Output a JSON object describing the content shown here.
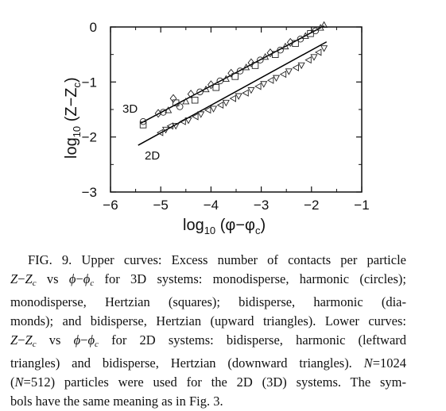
{
  "figure": {
    "chart_data": {
      "type": "scatter",
      "xlabel": "log10 (φ−φc)",
      "ylabel": "log10 (Z−Zc)",
      "xlim": [
        -6,
        -1
      ],
      "ylim": [
        -3,
        0
      ],
      "xticks": [
        "−6",
        "−5",
        "−4",
        "−3",
        "−2",
        "−1"
      ],
      "yticks": [
        "0",
        "−1",
        "−2",
        "−3"
      ],
      "grid": false,
      "series": [
        {
          "name": "3D",
          "fit": [
            [
              -5.4,
              -1.75
            ],
            [
              -1.75,
              0.02
            ]
          ],
          "points": [
            {
              "m": "circle",
              "x": -5.35,
              "y": -1.72
            },
            {
              "m": "square",
              "x": -5.35,
              "y": -1.78
            },
            {
              "m": "diamond",
              "x": -5.05,
              "y": -1.57
            },
            {
              "m": "circle",
              "x": -4.95,
              "y": -1.55
            },
            {
              "m": "up",
              "x": -4.85,
              "y": -1.52
            },
            {
              "m": "diamond",
              "x": -4.75,
              "y": -1.3
            },
            {
              "m": "square",
              "x": -4.7,
              "y": -1.38
            },
            {
              "m": "circle",
              "x": -4.62,
              "y": -1.45
            },
            {
              "m": "up",
              "x": -4.5,
              "y": -1.36
            },
            {
              "m": "diamond",
              "x": -4.4,
              "y": -1.22
            },
            {
              "m": "square",
              "x": -4.32,
              "y": -1.33
            },
            {
              "m": "circle",
              "x": -4.22,
              "y": -1.18
            },
            {
              "m": "up",
              "x": -4.1,
              "y": -1.14
            },
            {
              "m": "diamond",
              "x": -4.0,
              "y": -1.05
            },
            {
              "m": "square",
              "x": -3.9,
              "y": -1.1
            },
            {
              "m": "circle",
              "x": -3.82,
              "y": -0.98
            },
            {
              "m": "up",
              "x": -3.7,
              "y": -0.95
            },
            {
              "m": "diamond",
              "x": -3.6,
              "y": -0.84
            },
            {
              "m": "square",
              "x": -3.52,
              "y": -0.9
            },
            {
              "m": "circle",
              "x": -3.42,
              "y": -0.8
            },
            {
              "m": "up",
              "x": -3.3,
              "y": -0.74
            },
            {
              "m": "diamond",
              "x": -3.2,
              "y": -0.65
            },
            {
              "m": "square",
              "x": -3.12,
              "y": -0.7
            },
            {
              "m": "circle",
              "x": -3.02,
              "y": -0.6
            },
            {
              "m": "up",
              "x": -2.92,
              "y": -0.55
            },
            {
              "m": "diamond",
              "x": -2.82,
              "y": -0.47
            },
            {
              "m": "square",
              "x": -2.72,
              "y": -0.5
            },
            {
              "m": "circle",
              "x": -2.62,
              "y": -0.42
            },
            {
              "m": "up",
              "x": -2.52,
              "y": -0.36
            },
            {
              "m": "diamond",
              "x": -2.42,
              "y": -0.28
            },
            {
              "m": "square",
              "x": -2.32,
              "y": -0.3
            },
            {
              "m": "circle",
              "x": -2.22,
              "y": -0.22
            },
            {
              "m": "up",
              "x": -2.12,
              "y": -0.17
            },
            {
              "m": "square",
              "x": -2.02,
              "y": -0.12
            },
            {
              "m": "circle",
              "x": -1.92,
              "y": -0.07
            },
            {
              "m": "up",
              "x": -1.82,
              "y": -0.02
            },
            {
              "m": "up",
              "x": -1.75,
              "y": 0.03
            }
          ]
        },
        {
          "name": "2D",
          "fit": [
            [
              -5.45,
              -2.15
            ],
            [
              -1.7,
              -0.27
            ]
          ],
          "points": [
            {
              "m": "left",
              "x": -5.0,
              "y": -1.92
            },
            {
              "m": "down",
              "x": -4.9,
              "y": -1.86
            },
            {
              "m": "left",
              "x": -4.8,
              "y": -1.8
            },
            {
              "m": "down",
              "x": -4.7,
              "y": -1.79
            },
            {
              "m": "left",
              "x": -4.55,
              "y": -1.72
            },
            {
              "m": "down",
              "x": -4.45,
              "y": -1.69
            },
            {
              "m": "left",
              "x": -4.3,
              "y": -1.63
            },
            {
              "m": "down",
              "x": -4.2,
              "y": -1.58
            },
            {
              "m": "left",
              "x": -4.05,
              "y": -1.51
            },
            {
              "m": "down",
              "x": -3.95,
              "y": -1.48
            },
            {
              "m": "left",
              "x": -3.8,
              "y": -1.42
            },
            {
              "m": "down",
              "x": -3.7,
              "y": -1.37
            },
            {
              "m": "left",
              "x": -3.55,
              "y": -1.3
            },
            {
              "m": "down",
              "x": -3.45,
              "y": -1.25
            },
            {
              "m": "left",
              "x": -3.3,
              "y": -1.2
            },
            {
              "m": "down",
              "x": -3.2,
              "y": -1.14
            },
            {
              "m": "left",
              "x": -3.05,
              "y": -1.08
            },
            {
              "m": "down",
              "x": -2.95,
              "y": -1.03
            },
            {
              "m": "left",
              "x": -2.8,
              "y": -0.97
            },
            {
              "m": "down",
              "x": -2.7,
              "y": -0.92
            },
            {
              "m": "left",
              "x": -2.55,
              "y": -0.86
            },
            {
              "m": "down",
              "x": -2.45,
              "y": -0.8
            },
            {
              "m": "left",
              "x": -2.3,
              "y": -0.74
            },
            {
              "m": "down",
              "x": -2.2,
              "y": -0.69
            },
            {
              "m": "left",
              "x": -2.05,
              "y": -0.6
            },
            {
              "m": "down",
              "x": -1.95,
              "y": -0.54
            },
            {
              "m": "left",
              "x": -1.85,
              "y": -0.46
            },
            {
              "m": "down",
              "x": -1.75,
              "y": -0.38
            }
          ]
        }
      ]
    }
  },
  "caption": {
    "label": "FIG. 9.",
    "t1": "Upper curves: Excess number of contacts per particle",
    "t2": "vs",
    "t3": "for 3D systems: monodisperse, harmonic (circles);",
    "l3": "monodisperse, Hertzian (squares); bidisperse, harmonic (dia-",
    "l4": "monds); and bidisperse, Hertzian (upward triangles). Lower curves:",
    "t5a": "vs",
    "t5b": "for 2D systems: bidisperse, harmonic (leftward",
    "l6": "triangles) and bidisperse, Hertzian (downward triangles).",
    "n1": "1024",
    "t7a": "(",
    "n2": "512",
    "t7b": ") particles were used for the 2D (3D) systems. The sym-",
    "l8": "bols have the same meaning as in Fig. 3."
  }
}
